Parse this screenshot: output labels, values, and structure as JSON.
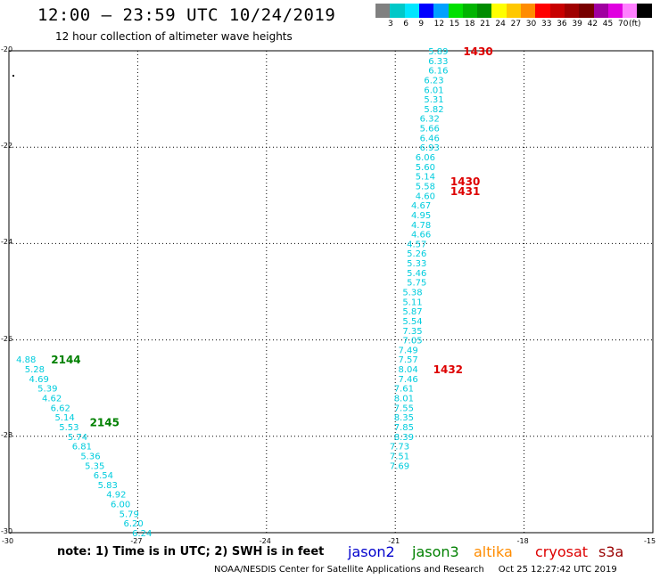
{
  "header": {
    "title": "12:00 – 23:59 UTC 10/24/2019",
    "subtitle": "12 hour collection of altimeter wave heights"
  },
  "legend": {
    "colors": [
      "#808080",
      "#00c8c8",
      "#00e6ff",
      "#0000ff",
      "#00a0ff",
      "#00e000",
      "#00b400",
      "#008c00",
      "#ffff00",
      "#ffc800",
      "#ff8c00",
      "#ff0000",
      "#c80000",
      "#a00000",
      "#780000",
      "#a000a0",
      "#e000e0",
      "#ff80ff",
      "#000000"
    ],
    "labels": [
      "3",
      "6",
      "9",
      "12",
      "15",
      "18",
      "21",
      "24",
      "27",
      "30",
      "33",
      "36",
      "39",
      "42",
      "45",
      "70"
    ],
    "unit": "(ft)"
  },
  "axes": {
    "lat_labels": [
      "-20",
      "-22",
      "-24",
      "-26",
      "-28",
      "-30"
    ],
    "lon_labels": [
      "-30",
      "-27",
      "-24",
      "-21",
      "-18",
      "-15"
    ]
  },
  "chart_data": {
    "type": "scatter",
    "xlim": [
      -30,
      -15
    ],
    "ylim": [
      -30,
      -20
    ],
    "grid": true,
    "tracks": [
      {
        "name": "jason3",
        "color": "#00ccdd",
        "label_color": "#008000",
        "times": [
          {
            "text": "2144",
            "lat": -26.4
          },
          {
            "text": "2145",
            "lat": -27.7
          }
        ],
        "points": [
          {
            "lon": -29.6,
            "lat": -26.4,
            "swh": "4.88"
          },
          {
            "lon": -29.4,
            "lat": -26.6,
            "swh": "5.28"
          },
          {
            "lon": -29.3,
            "lat": -26.8,
            "swh": "4.69"
          },
          {
            "lon": -29.1,
            "lat": -27.0,
            "swh": "5.39"
          },
          {
            "lon": -29.0,
            "lat": -27.2,
            "swh": "4.62"
          },
          {
            "lon": -28.8,
            "lat": -27.4,
            "swh": "6.62"
          },
          {
            "lon": -28.7,
            "lat": -27.6,
            "swh": "5.14"
          },
          {
            "lon": -28.6,
            "lat": -27.8,
            "swh": "5.53"
          },
          {
            "lon": -28.4,
            "lat": -28.0,
            "swh": "5.74"
          },
          {
            "lon": -28.3,
            "lat": -28.2,
            "swh": "6.81"
          },
          {
            "lon": -28.1,
            "lat": -28.4,
            "swh": "5.36"
          },
          {
            "lon": -28.0,
            "lat": -28.6,
            "swh": "5.35"
          },
          {
            "lon": -27.8,
            "lat": -28.8,
            "swh": "6.54"
          },
          {
            "lon": -27.7,
            "lat": -29.0,
            "swh": "5.83"
          },
          {
            "lon": -27.5,
            "lat": -29.2,
            "swh": "4.92"
          },
          {
            "lon": -27.4,
            "lat": -29.4,
            "swh": "6.00"
          },
          {
            "lon": -27.2,
            "lat": -29.6,
            "swh": "5.79"
          },
          {
            "lon": -27.1,
            "lat": -29.8,
            "swh": "6.20"
          },
          {
            "lon": -26.9,
            "lat": -30.0,
            "swh": "6.24"
          }
        ]
      },
      {
        "name": "cryosat",
        "color": "#00ccdd",
        "label_color": "#dd0000",
        "times": [
          {
            "text": "1430",
            "lat": -20.0
          },
          {
            "text": "1430",
            "lat": -22.7
          },
          {
            "text": "1431",
            "lat": -22.9
          },
          {
            "text": "1432",
            "lat": -26.6
          }
        ],
        "points": [
          {
            "lon": -20.0,
            "lat": -20.0,
            "swh": "5.89"
          },
          {
            "lon": -20.0,
            "lat": -20.2,
            "swh": "6.33"
          },
          {
            "lon": -20.0,
            "lat": -20.4,
            "swh": "6.16"
          },
          {
            "lon": -20.1,
            "lat": -20.6,
            "swh": "6.23"
          },
          {
            "lon": -20.1,
            "lat": -20.8,
            "swh": "6.01"
          },
          {
            "lon": -20.1,
            "lat": -21.0,
            "swh": "5.31"
          },
          {
            "lon": -20.1,
            "lat": -21.2,
            "swh": "5.82"
          },
          {
            "lon": -20.2,
            "lat": -21.4,
            "swh": "6.32"
          },
          {
            "lon": -20.2,
            "lat": -21.6,
            "swh": "5.66"
          },
          {
            "lon": -20.2,
            "lat": -21.8,
            "swh": "6.46"
          },
          {
            "lon": -20.2,
            "lat": -22.0,
            "swh": "6.93"
          },
          {
            "lon": -20.3,
            "lat": -22.2,
            "swh": "6.06"
          },
          {
            "lon": -20.3,
            "lat": -22.4,
            "swh": "5.60"
          },
          {
            "lon": -20.3,
            "lat": -22.6,
            "swh": "5.14"
          },
          {
            "lon": -20.3,
            "lat": -22.8,
            "swh": "5.58"
          },
          {
            "lon": -20.3,
            "lat": -23.0,
            "swh": "4.60"
          },
          {
            "lon": -20.4,
            "lat": -23.2,
            "swh": "4.67"
          },
          {
            "lon": -20.4,
            "lat": -23.4,
            "swh": "4.95"
          },
          {
            "lon": -20.4,
            "lat": -23.6,
            "swh": "4.78"
          },
          {
            "lon": -20.4,
            "lat": -23.8,
            "swh": "4.66"
          },
          {
            "lon": -20.5,
            "lat": -24.0,
            "swh": "4.57"
          },
          {
            "lon": -20.5,
            "lat": -24.2,
            "swh": "5.26"
          },
          {
            "lon": -20.5,
            "lat": -24.4,
            "swh": "5.33"
          },
          {
            "lon": -20.5,
            "lat": -24.6,
            "swh": "5.46"
          },
          {
            "lon": -20.5,
            "lat": -24.8,
            "swh": "5.75"
          },
          {
            "lon": -20.6,
            "lat": -25.0,
            "swh": "5.38"
          },
          {
            "lon": -20.6,
            "lat": -25.2,
            "swh": "5.11"
          },
          {
            "lon": -20.6,
            "lat": -25.4,
            "swh": "5.87"
          },
          {
            "lon": -20.6,
            "lat": -25.6,
            "swh": "5.54"
          },
          {
            "lon": -20.6,
            "lat": -25.8,
            "swh": "7.35"
          },
          {
            "lon": -20.6,
            "lat": -26.0,
            "swh": "7.05"
          },
          {
            "lon": -20.7,
            "lat": -26.2,
            "swh": "7.49"
          },
          {
            "lon": -20.7,
            "lat": -26.4,
            "swh": "7.57"
          },
          {
            "lon": -20.7,
            "lat": -26.6,
            "swh": "8.04"
          },
          {
            "lon": -20.7,
            "lat": -26.8,
            "swh": "7.46"
          },
          {
            "lon": -20.8,
            "lat": -27.0,
            "swh": "7.61"
          },
          {
            "lon": -20.8,
            "lat": -27.2,
            "swh": "8.01"
          },
          {
            "lon": -20.8,
            "lat": -27.4,
            "swh": "7.55"
          },
          {
            "lon": -20.8,
            "lat": -27.6,
            "swh": "8.35"
          },
          {
            "lon": -20.8,
            "lat": -27.8,
            "swh": "7.85"
          },
          {
            "lon": -20.8,
            "lat": -28.0,
            "swh": "8.39"
          },
          {
            "lon": -20.9,
            "lat": -28.2,
            "swh": "7.73"
          },
          {
            "lon": -20.9,
            "lat": -28.4,
            "swh": "7.51"
          },
          {
            "lon": -20.9,
            "lat": -28.6,
            "swh": "7.69"
          }
        ]
      }
    ]
  },
  "footer": {
    "note": "note: 1) Time is in UTC; 2) SWH is in feet",
    "missions": [
      {
        "name": "jason2",
        "color": "#0000cc"
      },
      {
        "name": "jason3",
        "color": "#008000"
      },
      {
        "name": "altika",
        "color": "#ff8c00"
      },
      {
        "name": "cryosat",
        "color": "#dd0000"
      },
      {
        "name": "s3a",
        "color": "#990000"
      }
    ],
    "credit": "NOAA/NESDIS Center for Satellite Applications and Research",
    "timestamp": "Oct 25 12:27:42 UTC 2019"
  }
}
